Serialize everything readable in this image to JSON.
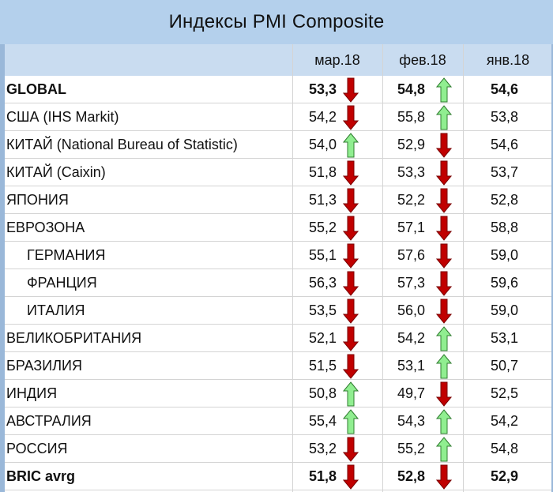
{
  "title": "Индексы PMI Composite",
  "columns": [
    "мар.18",
    "фев.18",
    "янв.18"
  ],
  "colors": {
    "down": "#c00000",
    "up": "#90ee90"
  },
  "rows": [
    {
      "name": "GLOBAL",
      "bold": true,
      "indent": false,
      "mar": "53,3",
      "mar_dir": "down",
      "feb": "54,8",
      "feb_dir": "up",
      "jan": "54,6"
    },
    {
      "name": "США (IHS Markit)",
      "bold": false,
      "indent": false,
      "mar": "54,2",
      "mar_dir": "down",
      "feb": "55,8",
      "feb_dir": "up",
      "jan": "53,8"
    },
    {
      "name": "КИТАЙ (National Bureau of Statistic)",
      "bold": false,
      "indent": false,
      "mar": "54,0",
      "mar_dir": "up",
      "feb": "52,9",
      "feb_dir": "down",
      "jan": "54,6"
    },
    {
      "name": "КИТАЙ (Caixin)",
      "bold": false,
      "indent": false,
      "mar": "51,8",
      "mar_dir": "down",
      "feb": "53,3",
      "feb_dir": "down",
      "jan": "53,7"
    },
    {
      "name": "ЯПОНИЯ",
      "bold": false,
      "indent": false,
      "mar": "51,3",
      "mar_dir": "down",
      "feb": "52,2",
      "feb_dir": "down",
      "jan": "52,8"
    },
    {
      "name": "ЕВРОЗОНА",
      "bold": false,
      "indent": false,
      "mar": "55,2",
      "mar_dir": "down",
      "feb": "57,1",
      "feb_dir": "down",
      "jan": "58,8"
    },
    {
      "name": "ГЕРМАНИЯ",
      "bold": false,
      "indent": true,
      "mar": "55,1",
      "mar_dir": "down",
      "feb": "57,6",
      "feb_dir": "down",
      "jan": "59,0"
    },
    {
      "name": "ФРАНЦИЯ",
      "bold": false,
      "indent": true,
      "mar": "56,3",
      "mar_dir": "down",
      "feb": "57,3",
      "feb_dir": "down",
      "jan": "59,6"
    },
    {
      "name": "ИТАЛИЯ",
      "bold": false,
      "indent": true,
      "mar": "53,5",
      "mar_dir": "down",
      "feb": "56,0",
      "feb_dir": "down",
      "jan": "59,0"
    },
    {
      "name": "ВЕЛИКОБРИТАНИЯ",
      "bold": false,
      "indent": false,
      "mar": "52,1",
      "mar_dir": "down",
      "feb": "54,2",
      "feb_dir": "up",
      "jan": "53,1"
    },
    {
      "name": "БРАЗИЛИЯ",
      "bold": false,
      "indent": false,
      "mar": "51,5",
      "mar_dir": "down",
      "feb": "53,1",
      "feb_dir": "up",
      "jan": "50,7"
    },
    {
      "name": "ИНДИЯ",
      "bold": false,
      "indent": false,
      "mar": "50,8",
      "mar_dir": "up",
      "feb": "49,7",
      "feb_dir": "down",
      "jan": "52,5"
    },
    {
      "name": "АВСТРАЛИЯ",
      "bold": false,
      "indent": false,
      "mar": "55,4",
      "mar_dir": "up",
      "feb": "54,3",
      "feb_dir": "up",
      "jan": "54,2"
    },
    {
      "name": "РОССИЯ",
      "bold": false,
      "indent": false,
      "mar": "53,2",
      "mar_dir": "down",
      "feb": "55,2",
      "feb_dir": "up",
      "jan": "54,8"
    },
    {
      "name": "BRIC avrg",
      "bold": true,
      "indent": false,
      "mar": "51,8",
      "mar_dir": "down",
      "feb": "52,8",
      "feb_dir": "down",
      "jan": "52,9"
    }
  ]
}
